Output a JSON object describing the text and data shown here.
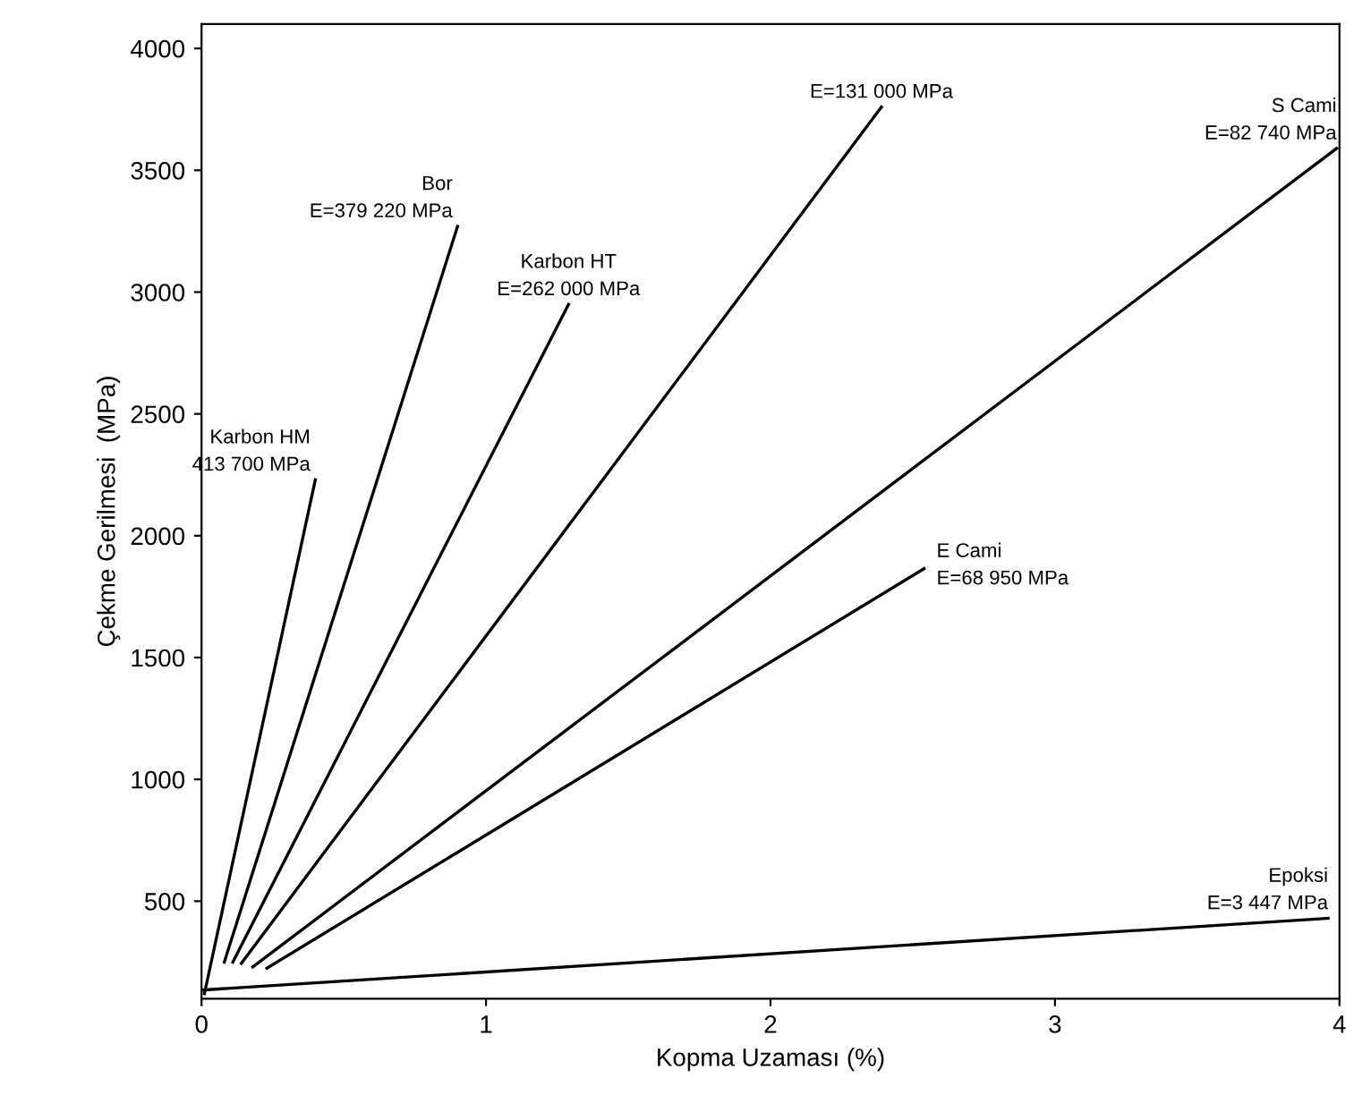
{
  "chart_data": {
    "type": "line",
    "xlabel": "Kopma Uzaması (%)",
    "ylabel": "Çekme Gerilmesi  (MPa)",
    "xlim": [
      0,
      4
    ],
    "ylim": [
      100,
      4100
    ],
    "xticks": [
      0,
      1,
      2,
      3,
      4
    ],
    "yticks": [
      500,
      1000,
      1500,
      2000,
      2500,
      3000,
      3500,
      4000
    ],
    "grid": false,
    "legend": false,
    "marker": "none",
    "line_style": "solid",
    "series": [
      {
        "name": "Karbon HM",
        "color": "#000000",
        "x": [
          0.01,
          0.4
        ],
        "values": [
          120,
          2230
        ]
      },
      {
        "name": "Bor",
        "color": "#000000",
        "x": [
          0.08,
          0.9
        ],
        "values": [
          250,
          3270
        ]
      },
      {
        "name": "Karbon HT",
        "color": "#000000",
        "x": [
          0.11,
          1.29
        ],
        "values": [
          250,
          2950
        ]
      },
      {
        "color": "#000000",
        "x": [
          0.14,
          2.39
        ],
        "values": [
          245,
          3760
        ]
      },
      {
        "name": "S Cami",
        "color": "#000000",
        "x": [
          0.18,
          3.99
        ],
        "values": [
          230,
          3590
        ]
      },
      {
        "name": "E Cami",
        "color": "#000000",
        "x": [
          0.23,
          2.54
        ],
        "values": [
          225,
          1865
        ]
      },
      {
        "name": "Epoksi",
        "color": "#000000",
        "x": [
          0.0,
          3.96
        ],
        "values": [
          135,
          430
        ]
      }
    ],
    "annotations": [
      {
        "text": "413 700 MPa",
        "x": 0.4,
        "y": 2230
      },
      {
        "text": "E=379 220 MPa",
        "x": 0.9,
        "y": 3270
      },
      {
        "text": "E=262 000 MPa",
        "x": 1.29,
        "y": 2950
      },
      {
        "text": "E=131 000 MPa",
        "x": 2.39,
        "y": 3760
      },
      {
        "text": "E=82 740 MPa",
        "x": 3.99,
        "y": 3590
      },
      {
        "text": "E=68 950 MPa",
        "x": 2.54,
        "y": 1865
      },
      {
        "text": "E=3 447 MPa",
        "x": 3.96,
        "y": 430
      }
    ]
  }
}
